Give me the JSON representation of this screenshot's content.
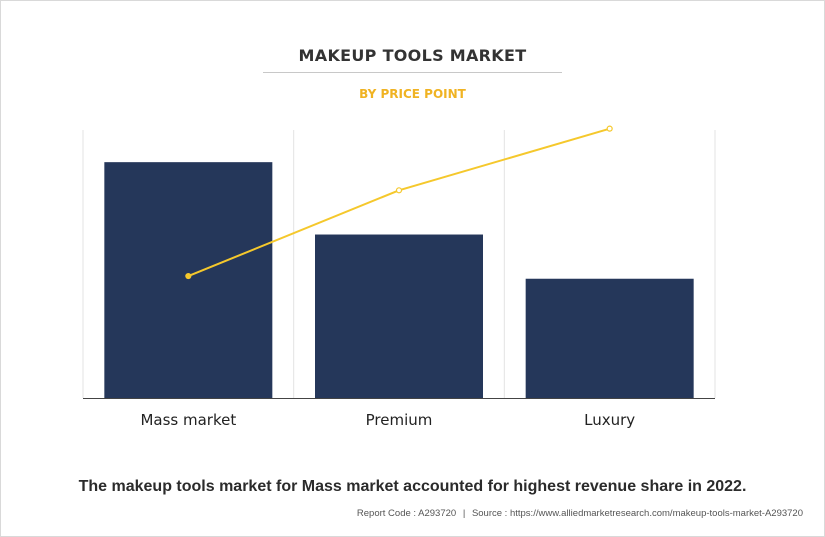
{
  "title": "MAKEUP TOOLS MARKET",
  "subtitle": "BY PRICE POINT",
  "caption": "The makeup tools market for Mass market accounted for highest revenue share in 2022.",
  "footer": {
    "report_code": "Report Code : A293720",
    "separator": "|",
    "source": "Source : https://www.alliedmarketresearch.com/makeup-tools-market-A293720"
  },
  "colors": {
    "bar": "#25375a",
    "line": "#f5c82c",
    "subtitle": "#f0b323",
    "grid": "#e3e3e3",
    "axis": "#444444"
  },
  "chart_data": {
    "type": "bar",
    "categories": [
      "Mass market",
      "Premium",
      "Luxury"
    ],
    "series": [
      {
        "kind": "bar",
        "values": [
          88,
          61,
          44.5
        ]
      },
      {
        "kind": "line",
        "values": [
          45.5,
          77.5,
          100.5
        ]
      }
    ],
    "ylim": [
      0,
      100
    ],
    "grid": true,
    "xlabel": "",
    "ylabel": ""
  }
}
